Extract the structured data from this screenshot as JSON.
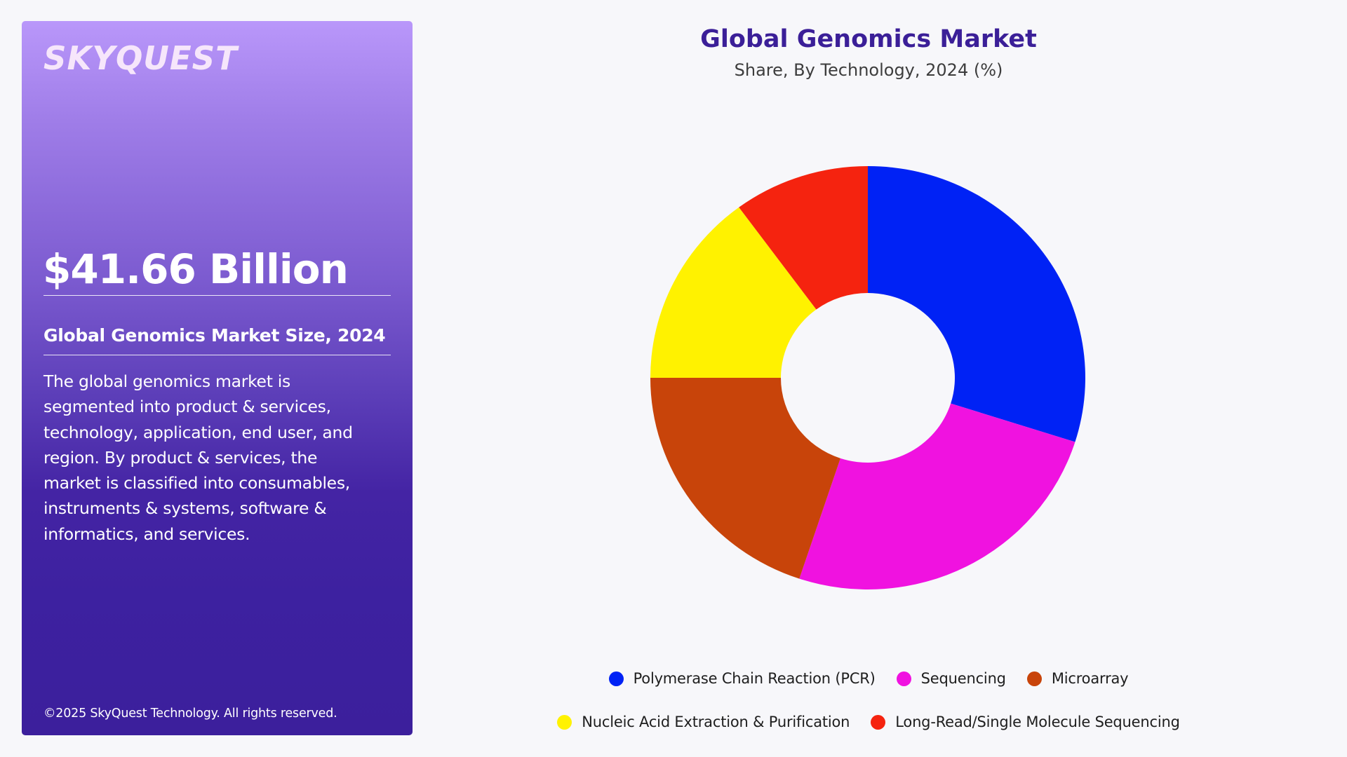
{
  "panel": {
    "logo": "SKYQUEST",
    "market_value": "$41.66 Billion",
    "market_size_label": "Global Genomics Market Size, 2024",
    "description_lines": [
      "The global genomics market is",
      "segmented into product & services,",
      "technology, application, end user, and",
      "region. By product & services, the",
      "market is classified into consumables,",
      "instruments & systems, software &",
      "informatics, and services."
    ],
    "copyright": "©2025 SkyQuest Technology. All rights reserved.",
    "colors": {
      "gradient_top": "#b997fa",
      "gradient_bottom": "#3c1f9c"
    }
  },
  "chart": {
    "title": "Global Genomics Market",
    "subtitle": "Share, By Technology, 2024 (%)"
  },
  "chart_data": {
    "type": "pie",
    "variant": "donut",
    "title": "Global Genomics Market",
    "subtitle": "Share, By Technology, 2024 (%)",
    "categories": [
      "Polymerase Chain Reaction (PCR)",
      "Sequencing",
      "Microarray",
      "Nucleic Acid Extraction & Purification",
      "Long-Read/Single Molecule Sequencing"
    ],
    "values": [
      29.9,
      25.2,
      19.9,
      14.9,
      10.1
    ],
    "colors": [
      "#0022f5",
      "#f012e0",
      "#c8440a",
      "#fff200",
      "#f5230f"
    ],
    "start_angle_deg": 0,
    "direction": "clockwise",
    "data_labels": false,
    "legend_position": "bottom",
    "legend_rows": [
      [
        0,
        1,
        2
      ],
      [
        3,
        4
      ]
    ]
  }
}
